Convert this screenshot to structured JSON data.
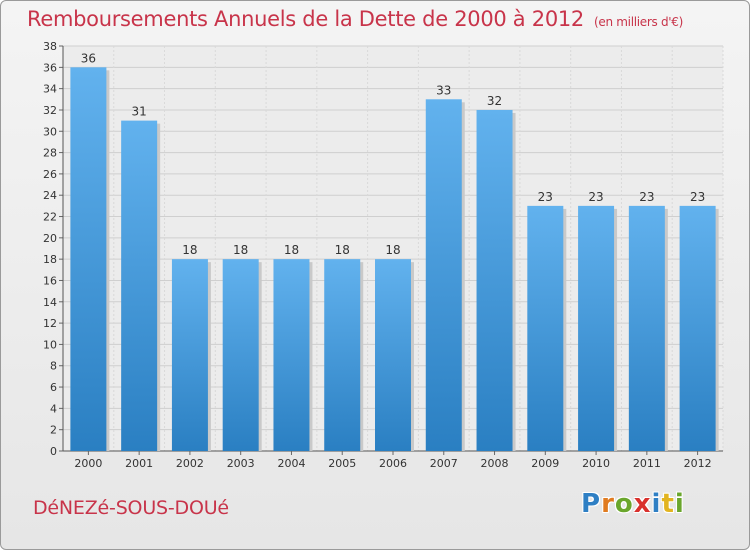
{
  "title": "Remboursements Annuels de la Dette de 2000 à 2012",
  "unit": "(en milliers d'€)",
  "commune": "DéNEZé-SOUS-DOUé",
  "logo": {
    "text": "Proxiti",
    "letters": [
      "P",
      "r",
      "o",
      "x",
      "i",
      "t",
      "i"
    ],
    "colors": [
      "#2e7fc4",
      "#e07b20",
      "#6aa62c",
      "#d9302c",
      "#2e7fc4",
      "#e2b420",
      "#6aa62c"
    ]
  },
  "colors": {
    "bar_light": "#62b2ee",
    "bar_dark": "#2a7fc2",
    "accent": "#c8344a"
  },
  "chart_data": {
    "type": "bar",
    "title": "Remboursements Annuels de la Dette de 2000 à 2012",
    "xlabel": "",
    "ylabel": "",
    "categories": [
      "2000",
      "2001",
      "2002",
      "2003",
      "2004",
      "2005",
      "2006",
      "2007",
      "2008",
      "2009",
      "2010",
      "2011",
      "2012"
    ],
    "values": [
      36,
      31,
      18,
      18,
      18,
      18,
      18,
      33,
      32,
      23,
      23,
      23,
      23
    ],
    "ylim": [
      0,
      38
    ],
    "yticks": [
      0,
      2,
      4,
      6,
      8,
      10,
      12,
      14,
      16,
      18,
      20,
      22,
      24,
      26,
      28,
      30,
      32,
      34,
      36,
      38
    ],
    "grid": true
  }
}
